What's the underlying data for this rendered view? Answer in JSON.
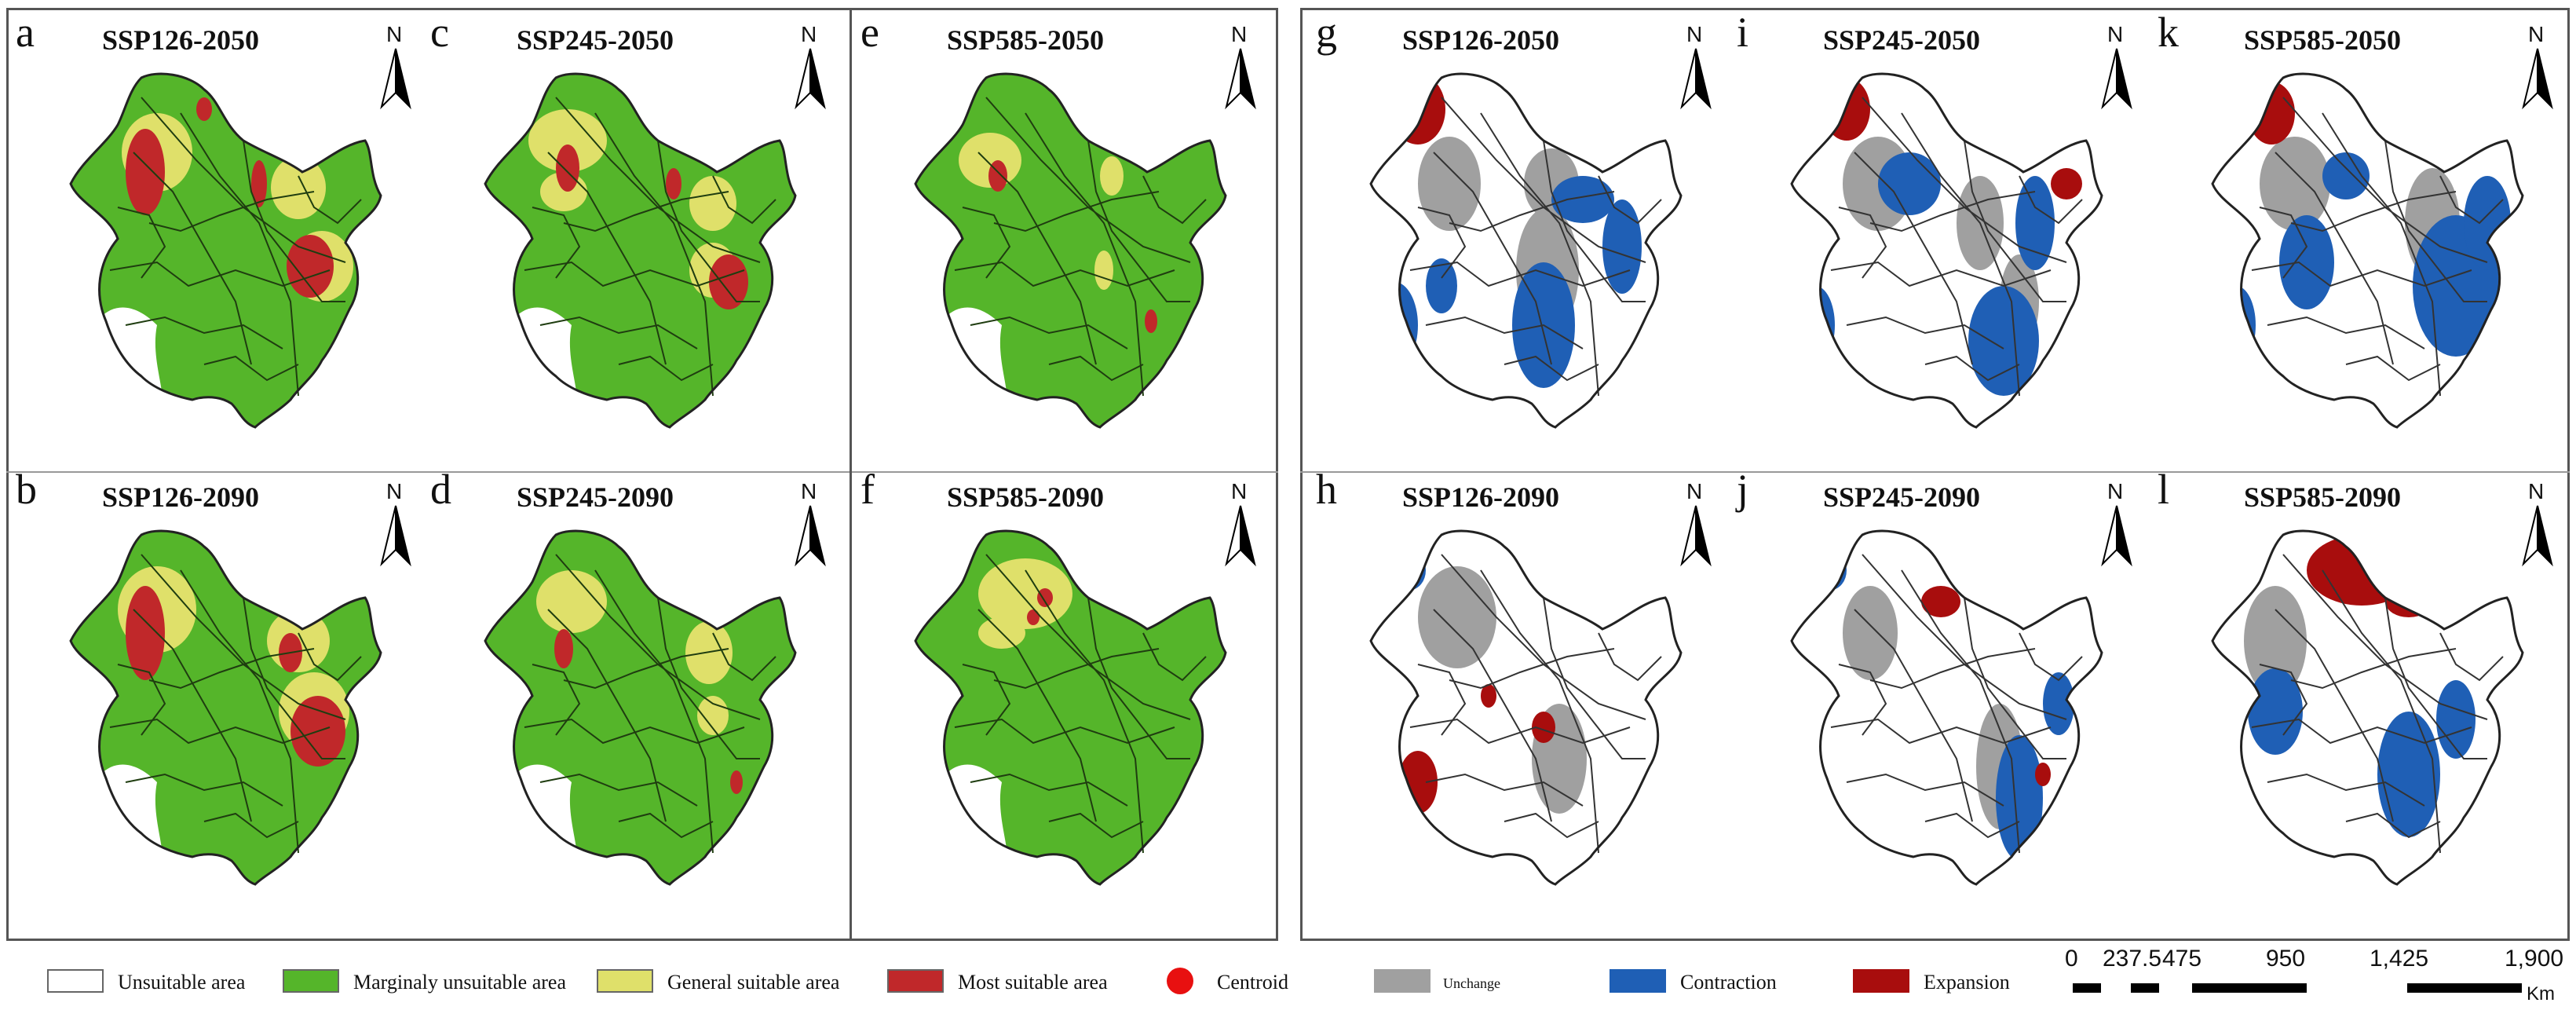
{
  "panels_left": [
    {
      "label": "a",
      "title": "SSP126-2050",
      "type": "suit",
      "v": 0
    },
    {
      "label": "c",
      "title": "SSP245-2050",
      "type": "suit",
      "v": 1
    },
    {
      "label": "e",
      "title": "SSP585-2050",
      "type": "suit",
      "v": 2
    },
    {
      "label": "b",
      "title": "SSP126-2090",
      "type": "suit",
      "v": 3
    },
    {
      "label": "d",
      "title": "SSP245-2090",
      "type": "suit",
      "v": 4
    },
    {
      "label": "f",
      "title": "SSP585-2090",
      "type": "suit",
      "v": 5
    }
  ],
  "panels_right": [
    {
      "label": "g",
      "title": "SSP126-2050",
      "type": "change",
      "v": 0
    },
    {
      "label": "i",
      "title": "SSP245-2050",
      "type": "change",
      "v": 1
    },
    {
      "label": "k",
      "title": "SSP585-2050",
      "type": "change",
      "v": 2
    },
    {
      "label": "h",
      "title": "SSP126-2090",
      "type": "change",
      "v": 3
    },
    {
      "label": "j",
      "title": "SSP245-2090",
      "type": "change",
      "v": 4
    },
    {
      "label": "l",
      "title": "SSP585-2090",
      "type": "change",
      "v": 5
    }
  ],
  "north_label": "N",
  "legend": [
    {
      "text": "Unsuitable area",
      "color": "#ffffff"
    },
    {
      "text": "Marginaly unsuitable area",
      "color": "#55b52a"
    },
    {
      "text": "General suitable area",
      "color": "#dfe06a"
    },
    {
      "text": "Most suitable area",
      "color": "#c0282a"
    },
    {
      "text": "Centroid",
      "color": "#e81010"
    },
    {
      "text": "Unchange",
      "color": "#a0a0a0"
    },
    {
      "text": "Contraction",
      "color": "#1f5fb5"
    },
    {
      "text": "Expansion",
      "color": "#a80d0d"
    }
  ],
  "scale": {
    "ticks": [
      "0",
      "237.5",
      "475",
      "950",
      "1,425",
      "1,900"
    ],
    "unit": "Km"
  }
}
